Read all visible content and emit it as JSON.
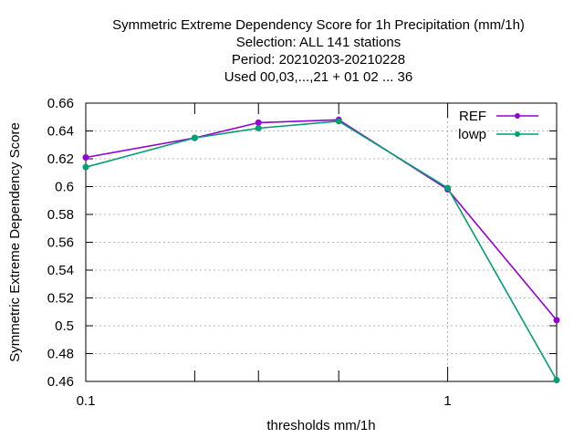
{
  "chart_data": {
    "type": "line",
    "title_lines": [
      "Symmetric Extreme Dependency Score  for 1h Precipitation (mm/1h)",
      "Selection: ALL     141 stations",
      "Period: 20210203-20210228",
      "Used  00,03,...,21  + 01 02 ... 36"
    ],
    "xlabel": "thresholds mm/1h",
    "ylabel": "Symmetric Extreme Dependency Score",
    "x_scale": "log",
    "xlim": [
      0.1,
      2
    ],
    "ylim": [
      0.46,
      0.66
    ],
    "x_ticks": [
      {
        "value": 0.1,
        "label": "0.1"
      },
      {
        "value": 1,
        "label": "1"
      }
    ],
    "x_minor_ticks": [
      0.2,
      0.3,
      0.5
    ],
    "y_ticks": [
      {
        "value": 0.46,
        "label": "0.46"
      },
      {
        "value": 0.48,
        "label": "0.48"
      },
      {
        "value": 0.5,
        "label": "0.5"
      },
      {
        "value": 0.52,
        "label": "0.52"
      },
      {
        "value": 0.54,
        "label": "0.54"
      },
      {
        "value": 0.56,
        "label": "0.56"
      },
      {
        "value": 0.58,
        "label": "0.58"
      },
      {
        "value": 0.6,
        "label": "0.6"
      },
      {
        "value": 0.62,
        "label": "0.62"
      },
      {
        "value": 0.64,
        "label": "0.64"
      },
      {
        "value": 0.66,
        "label": "0.66"
      }
    ],
    "grid": true,
    "legend_position": "top-right",
    "x": [
      0.1,
      0.2,
      0.3,
      0.5,
      1,
      2
    ],
    "series": [
      {
        "name": "REF",
        "color": "#9400d3",
        "values": [
          0.621,
          0.635,
          0.646,
          0.648,
          0.598,
          0.504
        ]
      },
      {
        "name": "lowp",
        "color": "#009e73",
        "values": [
          0.614,
          0.635,
          0.642,
          0.647,
          0.599,
          0.461
        ]
      }
    ]
  }
}
